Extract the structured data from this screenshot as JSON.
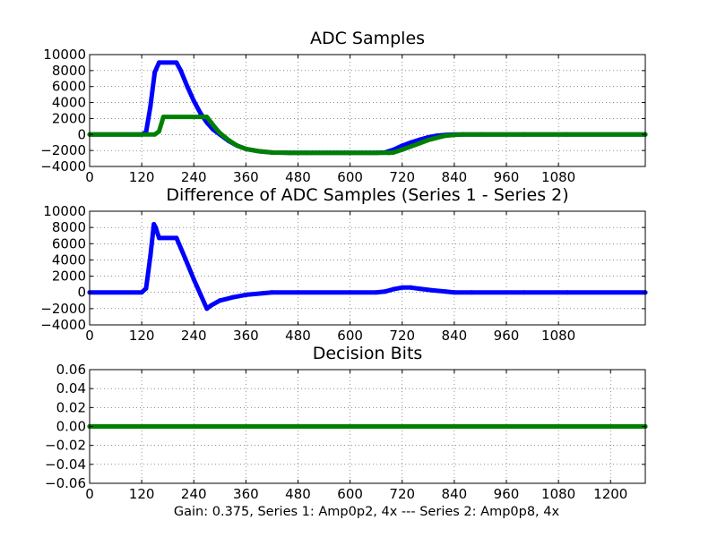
{
  "caption": "Gain: 0.375, Series 1: Amp0p2, 4x --- Series 2: Amp0p8, 4x",
  "colors": {
    "series1": "#0000ff",
    "series2": "#008000"
  },
  "chart_data": [
    {
      "type": "line",
      "title": "ADC Samples",
      "xlim": [
        0,
        1280
      ],
      "ylim": [
        -4000,
        10000
      ],
      "grid": true,
      "xticks": [
        0,
        120,
        240,
        360,
        480,
        600,
        720,
        840,
        960,
        1080
      ],
      "xtick_labels": [
        "0",
        "120",
        "240",
        "360",
        "480",
        "600",
        "720",
        "840",
        "960",
        "1080"
      ],
      "yticks": [
        -4000,
        -2000,
        0,
        2000,
        4000,
        6000,
        8000,
        10000
      ],
      "ytick_labels": [
        "−4000",
        "−2000",
        "0",
        "2000",
        "4000",
        "6000",
        "8000",
        "10000"
      ],
      "series": [
        {
          "color": "#0000ff",
          "x": [
            0,
            120,
            130,
            140,
            150,
            160,
            200,
            210,
            225,
            240,
            255,
            270,
            285,
            300,
            320,
            340,
            360,
            390,
            420,
            460,
            500,
            600,
            660,
            680,
            700,
            720,
            740,
            760,
            780,
            800,
            820,
            840,
            860,
            900,
            1000,
            1100,
            1280
          ],
          "y": [
            0,
            0,
            300,
            3500,
            7800,
            9000,
            9000,
            8000,
            6000,
            4200,
            2700,
            1500,
            600,
            0,
            -800,
            -1400,
            -1800,
            -2100,
            -2250,
            -2300,
            -2300,
            -2300,
            -2300,
            -2250,
            -1900,
            -1400,
            -1000,
            -650,
            -350,
            -150,
            -50,
            0,
            0,
            0,
            0,
            0,
            0
          ]
        },
        {
          "color": "#008000",
          "x": [
            0,
            150,
            160,
            170,
            270,
            280,
            290,
            300,
            320,
            340,
            360,
            390,
            420,
            460,
            500,
            600,
            690,
            700,
            720,
            740,
            760,
            780,
            800,
            820,
            840,
            860,
            900,
            1000,
            1100,
            1280
          ],
          "y": [
            0,
            0,
            400,
            2200,
            2200,
            1500,
            800,
            200,
            -700,
            -1400,
            -1800,
            -2100,
            -2250,
            -2300,
            -2300,
            -2300,
            -2300,
            -2250,
            -1900,
            -1500,
            -1100,
            -700,
            -400,
            -150,
            -50,
            0,
            0,
            0,
            0,
            0
          ]
        }
      ]
    },
    {
      "type": "line",
      "title": "Difference of ADC Samples (Series 1 - Series 2)",
      "xlim": [
        0,
        1280
      ],
      "ylim": [
        -4000,
        10000
      ],
      "grid": true,
      "xticks": [
        0,
        120,
        240,
        360,
        480,
        600,
        720,
        840,
        960,
        1080
      ],
      "xtick_labels": [
        "0",
        "120",
        "240",
        "360",
        "480",
        "600",
        "720",
        "840",
        "960",
        "1080"
      ],
      "yticks": [
        -4000,
        -2000,
        0,
        2000,
        4000,
        6000,
        8000,
        10000
      ],
      "ytick_labels": [
        "−4000",
        "−2000",
        "0",
        "2000",
        "4000",
        "6000",
        "8000",
        "10000"
      ],
      "series": [
        {
          "color": "#0000ff",
          "x": [
            0,
            120,
            130,
            140,
            148,
            152,
            160,
            200,
            220,
            240,
            255,
            270,
            280,
            300,
            330,
            360,
            400,
            420,
            480,
            600,
            660,
            680,
            700,
            720,
            740,
            760,
            790,
            820,
            840,
            880,
            1000,
            1100,
            1280
          ],
          "y": [
            0,
            0,
            500,
            4500,
            8400,
            8000,
            6700,
            6700,
            4200,
            1600,
            -200,
            -2000,
            -1600,
            -1000,
            -600,
            -300,
            -100,
            0,
            0,
            0,
            0,
            100,
            400,
            600,
            600,
            450,
            250,
            100,
            0,
            0,
            0,
            0,
            0
          ]
        }
      ]
    },
    {
      "type": "line",
      "title": "Decision Bits",
      "xlim": [
        0,
        1280
      ],
      "ylim": [
        -0.06,
        0.06
      ],
      "grid": true,
      "xticks": [
        0,
        120,
        240,
        360,
        480,
        600,
        720,
        840,
        960,
        1080,
        1200
      ],
      "xtick_labels": [
        "0",
        "120",
        "240",
        "360",
        "480",
        "600",
        "720",
        "840",
        "960",
        "1080",
        "1200"
      ],
      "yticks": [
        -0.06,
        -0.04,
        -0.02,
        0.0,
        0.02,
        0.04,
        0.06
      ],
      "ytick_labels": [
        "−0.06",
        "−0.04",
        "−0.02",
        "0.00",
        "0.02",
        "0.04",
        "0.06"
      ],
      "series": [
        {
          "color": "#0000ff",
          "x": [
            0,
            1280
          ],
          "y": [
            0,
            0
          ]
        },
        {
          "color": "#008000",
          "x": [
            0,
            1280
          ],
          "y": [
            0,
            0
          ]
        }
      ]
    }
  ]
}
